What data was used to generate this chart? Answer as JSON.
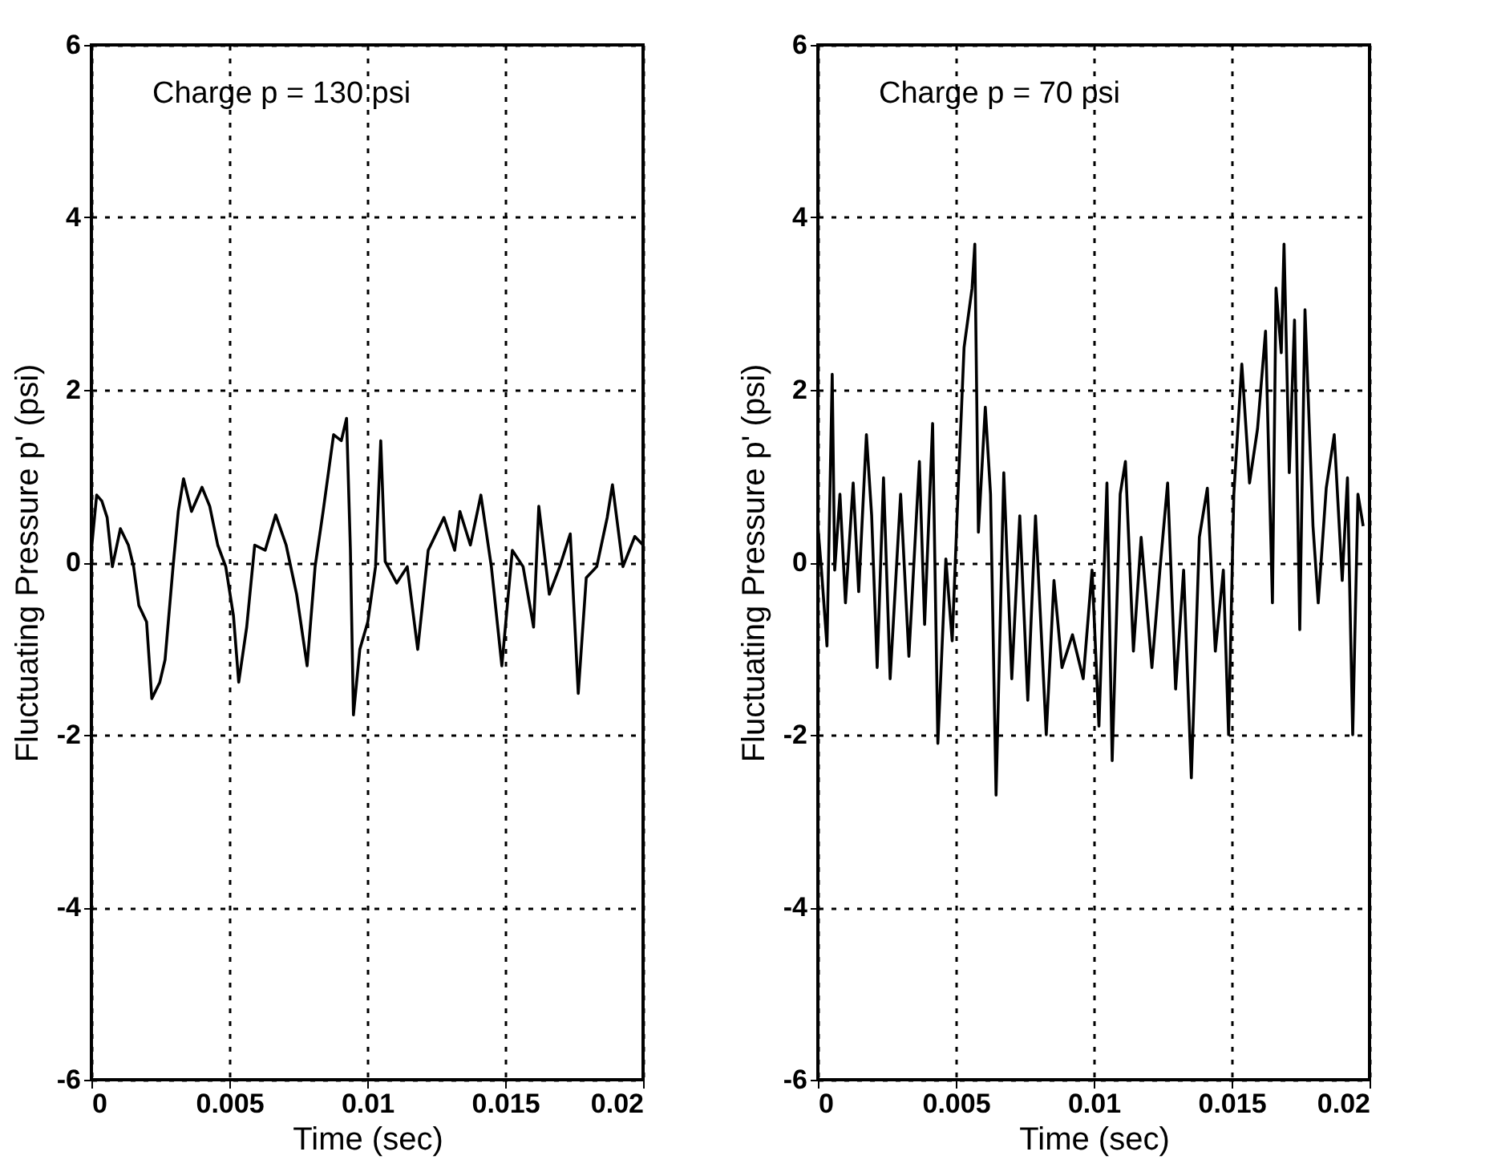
{
  "chart_data": [
    {
      "type": "line",
      "xlabel": "Time (sec)",
      "ylabel": "Fluctuating Pressure p' (psi)",
      "annotations": [
        "Charge p = 130 psi"
      ],
      "color": "#000000",
      "grid": true,
      "xlim": [
        0,
        0.02
      ],
      "xticks": [
        0,
        0.005,
        0.01,
        0.015,
        0.02
      ],
      "ylim": [
        -6,
        6
      ],
      "yticks": [
        -6,
        -4,
        -2,
        0,
        2,
        4,
        6
      ],
      "x": [
        0,
        0.00019,
        0.00038,
        0.00057,
        0.00076,
        0.00105,
        0.00134,
        0.00153,
        0.00172,
        0.002,
        0.00219,
        0.00248,
        0.00267,
        0.00296,
        0.00315,
        0.00334,
        0.00363,
        0.00401,
        0.00429,
        0.00458,
        0.00487,
        0.00515,
        0.00534,
        0.00563,
        0.00592,
        0.0063,
        0.00668,
        0.00706,
        0.00744,
        0.00782,
        0.00811,
        0.0084,
        0.00878,
        0.00906,
        0.00925,
        0.00939,
        0.0095,
        0.00973,
        0.01002,
        0.0103,
        0.01049,
        0.01065,
        0.01107,
        0.01145,
        0.01183,
        0.01221,
        0.01278,
        0.01317,
        0.01336,
        0.01374,
        0.01412,
        0.0145,
        0.01488,
        0.01526,
        0.01565,
        0.01603,
        0.01622,
        0.0166,
        0.01698,
        0.01736,
        0.01765,
        0.01794,
        0.01832,
        0.0187,
        0.01889,
        0.01927,
        0.0197,
        0.02
      ],
      "values": [
        0.14,
        0.78,
        0.71,
        0.52,
        -0.05,
        0.39,
        0.2,
        -0.05,
        -0.5,
        -0.69,
        -1.58,
        -1.39,
        -1.13,
        -0.05,
        0.59,
        0.97,
        0.59,
        0.87,
        0.65,
        0.2,
        -0.05,
        -0.62,
        -1.39,
        -0.75,
        0.2,
        0.14,
        0.55,
        0.2,
        -0.37,
        -1.2,
        -0.05,
        0.59,
        1.48,
        1.41,
        1.67,
        0.14,
        -1.77,
        -1.01,
        -0.69,
        -0.05,
        1.41,
        0.01,
        -0.24,
        -0.05,
        -1.01,
        0.14,
        0.52,
        0.14,
        0.59,
        0.2,
        0.78,
        -0.05,
        -1.2,
        0.14,
        -0.05,
        -0.75,
        0.65,
        -0.37,
        -0.05,
        0.33,
        -1.52,
        -0.18,
        -0.05,
        0.52,
        0.9,
        -0.05,
        0.3,
        0.2
      ]
    },
    {
      "type": "line",
      "xlabel": "Time (sec)",
      "ylabel": "Fluctuating Pressure p' (psi)",
      "annotations": [
        "Charge p = 70 psi"
      ],
      "color": "#000000",
      "grid": true,
      "xlim": [
        0,
        0.02
      ],
      "xticks": [
        0,
        0.005,
        0.01,
        0.015,
        0.02
      ],
      "ylim": [
        -6,
        6
      ],
      "yticks": [
        -6,
        -4,
        -2,
        0,
        2,
        4,
        6
      ],
      "x": [
        0,
        0.00013,
        0.00033,
        0.00052,
        0.00061,
        0.0008,
        0.001,
        0.00128,
        0.00148,
        0.00176,
        0.00195,
        0.00215,
        0.00238,
        0.00262,
        0.003,
        0.0033,
        0.00368,
        0.00387,
        0.00416,
        0.00435,
        0.00464,
        0.00487,
        0.00511,
        0.0053,
        0.00559,
        0.00569,
        0.00582,
        0.00607,
        0.00626,
        0.00646,
        0.00674,
        0.00703,
        0.00732,
        0.00761,
        0.00789,
        0.00828,
        0.00856,
        0.00885,
        0.00923,
        0.00962,
        0.00994,
        0.01019,
        0.01048,
        0.01067,
        0.01096,
        0.01115,
        0.01144,
        0.01172,
        0.01211,
        0.0124,
        0.01268,
        0.01297,
        0.01326,
        0.01354,
        0.01383,
        0.01412,
        0.01441,
        0.0147,
        0.01489,
        0.01508,
        0.01537,
        0.01565,
        0.01594,
        0.01623,
        0.01648,
        0.01661,
        0.0168,
        0.0169,
        0.01709,
        0.01728,
        0.01747,
        0.01766,
        0.01795,
        0.01814,
        0.01843,
        0.01872,
        0.01901,
        0.0192,
        0.01939,
        0.01958,
        0.01977
      ],
      "values": [
        0.42,
        -0.09,
        -0.97,
        2.18,
        -0.09,
        0.79,
        -0.47,
        0.92,
        -0.34,
        1.48,
        0.54,
        -1.22,
        0.98,
        -1.35,
        0.79,
        -1.09,
        1.17,
        -0.72,
        1.61,
        -2.1,
        0.04,
        -0.91,
        1.04,
        2.49,
        3.18,
        3.69,
        0.35,
        1.8,
        0.79,
        -2.7,
        1.04,
        -1.35,
        0.54,
        -1.6,
        0.54,
        -2.0,
        -0.21,
        -1.22,
        -0.84,
        -1.35,
        -0.09,
        -1.9,
        0.92,
        -2.3,
        0.79,
        1.17,
        -1.03,
        0.29,
        -1.22,
        -0.09,
        0.92,
        -1.47,
        -0.09,
        -2.5,
        0.29,
        0.86,
        -1.03,
        -0.09,
        -2.0,
        0.79,
        2.3,
        0.92,
        1.55,
        2.68,
        -0.47,
        3.18,
        2.43,
        3.69,
        1.04,
        2.81,
        -0.78,
        2.93,
        0.42,
        -0.47,
        0.86,
        1.48,
        -0.21,
        0.98,
        -2.0,
        0.79,
        0.42
      ]
    }
  ]
}
